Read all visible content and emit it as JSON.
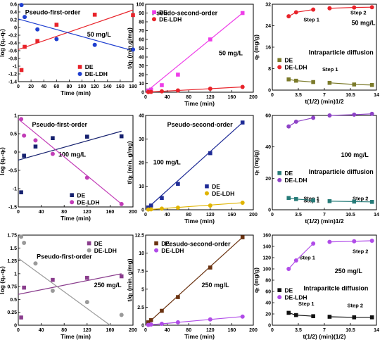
{
  "chart_data": [
    {
      "type": "scatter",
      "title": "Pseudo-first-order",
      "annotation": "50 mg/L",
      "xlabel": "Time (min)",
      "ylabel": "log (qₑ-qₜ)",
      "xlim": [
        0,
        180
      ],
      "ylim": [
        -1.4,
        0.6
      ],
      "xticks": [
        0,
        20,
        40,
        60,
        80,
        100,
        120,
        140,
        160,
        180
      ],
      "yticks": [
        -1.4,
        -1.2,
        -1.0,
        -0.8,
        -0.6,
        -0.4,
        -0.2,
        0.0,
        0.2,
        0.4,
        0.6
      ],
      "legend_position": "bottom-right",
      "series": [
        {
          "name": "DE",
          "color": "#e8232a",
          "marker": "square",
          "x": [
            5,
            10,
            30,
            60,
            120,
            180
          ],
          "y": [
            -1.1,
            -0.5,
            -0.35,
            0.07,
            0.33,
            0.32
          ],
          "fit": {
            "x": [
              0,
              180
            ],
            "y": [
              -0.57,
              0.45
            ]
          }
        },
        {
          "name": "DE-LDH",
          "color": "#1f3fd0",
          "marker": "circle",
          "x": [
            5,
            10,
            30,
            60,
            120,
            180
          ],
          "y": [
            0.58,
            0.27,
            -0.05,
            -0.3,
            -0.45,
            -0.57
          ],
          "fit": {
            "x": [
              0,
              180
            ],
            "y": [
              0.22,
              -0.6
            ]
          }
        }
      ]
    },
    {
      "type": "scatter",
      "title": "Pseudo-second-order",
      "annotation": "50 mg/L",
      "xlabel": "Time (min)",
      "ylabel": "t/qₜ (min.g/mg)",
      "xlim": [
        0,
        200
      ],
      "ylim": [
        0,
        100
      ],
      "xticks": [
        0,
        40,
        80,
        120,
        160,
        200
      ],
      "yticks": [
        0,
        10,
        20,
        30,
        40,
        50,
        60,
        70,
        80,
        90,
        100
      ],
      "legend_position": "top-left",
      "series": [
        {
          "name": "DE",
          "color": "#ee3de8",
          "marker": "square",
          "x": [
            5,
            10,
            30,
            60,
            120,
            180
          ],
          "y": [
            2,
            3,
            8,
            20,
            60,
            90
          ],
          "fit": {
            "x": [
              0,
              180
            ],
            "y": [
              0,
              90
            ]
          }
        },
        {
          "name": "DE-LDH",
          "color": "#e8232a",
          "marker": "circle",
          "x": [
            5,
            10,
            30,
            60,
            120,
            180
          ],
          "y": [
            0.2,
            0.4,
            1,
            2,
            4,
            6
          ],
          "fit": {
            "x": [
              0,
              180
            ],
            "y": [
              0,
              6
            ]
          }
        }
      ]
    },
    {
      "type": "scatter",
      "title": "Intraparticle diffusion",
      "annotation": "50 mg/L",
      "xlabel": "t(1/2) (min)1/2",
      "ylabel": "qₜ (mg/g)",
      "xlim": [
        0,
        14
      ],
      "ylim": [
        0,
        32
      ],
      "xticks": [
        0,
        3.5,
        7.0,
        10.5,
        14.0
      ],
      "yticks": [
        0,
        8,
        16,
        24,
        32
      ],
      "legend_position": "middle-left",
      "step_labels": [
        "Step 1",
        "Step 2",
        "Step 1"
      ],
      "series": [
        {
          "name": "DE",
          "color": "#7b7a2a",
          "marker": "square",
          "x": [
            2.2,
            3.2,
            5.5,
            7.7,
            11,
            13.4
          ],
          "y": [
            4,
            3.5,
            3,
            2.7,
            2.1,
            1.9
          ]
        },
        {
          "name": "DE-LDH",
          "color": "#e8232a",
          "marker": "circle",
          "x": [
            2.2,
            3.2,
            5.5,
            7.7,
            11,
            13.4
          ],
          "y": [
            27.5,
            29,
            30,
            30.5,
            30.8,
            30.9
          ]
        }
      ]
    },
    {
      "type": "scatter",
      "title": "Pseudo-first-order",
      "annotation": "100 mg/L",
      "xlabel": "Time (min)",
      "ylabel": "log (qₑ-qₜ)",
      "xlim": [
        0,
        200
      ],
      "ylim": [
        -1.5,
        1.0
      ],
      "xticks": [
        0,
        40,
        80,
        120,
        160,
        200
      ],
      "yticks": [
        -1.5,
        -1.0,
        -0.5,
        0.0,
        0.5,
        1.0
      ],
      "legend_position": "bottom-left",
      "series": [
        {
          "name": "DE",
          "color": "#15206e",
          "marker": "square",
          "x": [
            5,
            10,
            30,
            60,
            120,
            180
          ],
          "y": [
            -1.1,
            -0.1,
            0.15,
            0.38,
            0.42,
            0.43
          ],
          "fit": {
            "x": [
              0,
              180
            ],
            "y": [
              -0.22,
              0.57
            ]
          }
        },
        {
          "name": "DE-LDH",
          "color": "#c23db7",
          "marker": "circle",
          "x": [
            5,
            10,
            30,
            60,
            120,
            180
          ],
          "y": [
            0.9,
            0.45,
            0.32,
            -0.05,
            -0.7,
            -1.42
          ],
          "fit": {
            "x": [
              0,
              180
            ],
            "y": [
              0.9,
              -1.42
            ]
          }
        }
      ]
    },
    {
      "type": "scatter",
      "title": "Pseudo-second-order",
      "annotation": "100 mg/L",
      "xlabel": "Time (min)",
      "ylabel": "t/qₜ (min. g/mg)",
      "xlim": [
        0,
        200
      ],
      "ylim": [
        0,
        40
      ],
      "xticks": [
        0,
        40,
        80,
        120,
        160,
        200
      ],
      "yticks": [
        0,
        10,
        20,
        30,
        40
      ],
      "legend_position": "right",
      "series": [
        {
          "name": "DE",
          "color": "#1e2b96",
          "marker": "square",
          "x": [
            5,
            10,
            30,
            60,
            120,
            180
          ],
          "y": [
            1,
            1.8,
            5,
            11,
            24,
            37
          ],
          "fit": {
            "x": [
              0,
              180
            ],
            "y": [
              0,
              37
            ]
          }
        },
        {
          "name": "DE-LDH",
          "color": "#e0b400",
          "marker": "circle",
          "x": [
            5,
            10,
            30,
            60,
            120,
            180
          ],
          "y": [
            0.1,
            0.2,
            0.5,
            0.9,
            1.8,
            3
          ],
          "fit": {
            "x": [
              0,
              180
            ],
            "y": [
              0,
              3
            ]
          }
        }
      ]
    },
    {
      "type": "scatter",
      "title": "Intraparticle diffusion",
      "annotation": "100 mg/L",
      "xlabel": "t(1/2) (min)1/2",
      "ylabel": "qₜ (mg/g)",
      "xlim": [
        0,
        14
      ],
      "ylim": [
        0,
        60
      ],
      "xticks": [
        0,
        3.5,
        7.0,
        10.5,
        14.0
      ],
      "yticks": [
        0,
        20,
        40,
        60
      ],
      "legend_position": "middle-left",
      "step_labels": [
        "Step 1",
        "Step 1",
        "Step 2"
      ],
      "series": [
        {
          "name": "DE",
          "color": "#267b78",
          "marker": "square",
          "x": [
            2.2,
            3.2,
            5.5,
            7.7,
            11,
            13.4
          ],
          "y": [
            7.5,
            6.8,
            6,
            5.5,
            5.2,
            5
          ]
        },
        {
          "name": "DE-LDH",
          "color": "#8e43c7",
          "marker": "circle",
          "x": [
            2.2,
            3.2,
            5.5,
            7.7,
            11,
            13.4
          ],
          "y": [
            53,
            56,
            58.5,
            60,
            60.5,
            61
          ]
        }
      ]
    },
    {
      "type": "scatter",
      "title": "Pseudo-first-order",
      "annotation": "250 mg/L",
      "xlabel": "Time (min)",
      "ylabel": "log (qₑ-qₜ)",
      "xlim": [
        0,
        200
      ],
      "ylim": [
        0,
        1.75
      ],
      "xticks": [
        0,
        40,
        80,
        120,
        160,
        200
      ],
      "yticks": [
        0.0,
        0.25,
        0.5,
        0.75,
        1.0,
        1.25,
        1.5,
        1.75
      ],
      "legend_position": "top-right",
      "series": [
        {
          "name": "DE",
          "color": "#8a3d8d",
          "marker": "square",
          "x": [
            5,
            10,
            60,
            120,
            180
          ],
          "y": [
            0.15,
            0.73,
            0.88,
            0.92,
            0.95
          ],
          "fit": {
            "x": [
              0,
              180
            ],
            "y": [
              0.6,
              1.0
            ]
          }
        },
        {
          "name": "DE-LDH",
          "color": "#9a9a9a",
          "marker": "circle",
          "x": [
            5,
            10,
            30,
            60,
            120,
            180
          ],
          "y": [
            1.72,
            1.6,
            1.2,
            0.67,
            0.45,
            0.2
          ],
          "fit": {
            "x": [
              0,
              160
            ],
            "y": [
              1.3,
              0.0
            ]
          }
        }
      ]
    },
    {
      "type": "scatter",
      "title": "Pesudo-second-order",
      "annotation": "250 mg/L",
      "xlabel": "Time (min)",
      "ylabel": "t/qₜ (min. g/mg)",
      "xlim": [
        0,
        200
      ],
      "ylim": [
        0,
        12.5
      ],
      "xticks": [
        0,
        40,
        80,
        120,
        160,
        200
      ],
      "yticks": [
        0.0,
        2.5,
        5.0,
        7.5,
        10.0,
        12.5
      ],
      "legend_position": "top-left",
      "series": [
        {
          "name": "DE",
          "color": "#6a3210",
          "marker": "square",
          "x": [
            5,
            10,
            30,
            60,
            120,
            180
          ],
          "y": [
            0.4,
            0.7,
            2,
            3.9,
            8,
            12.2
          ],
          "fit": {
            "x": [
              0,
              180
            ],
            "y": [
              0,
              12.2
            ]
          }
        },
        {
          "name": "DE-LDH",
          "color": "#b04be8",
          "marker": "circle",
          "x": [
            5,
            10,
            30,
            60,
            120,
            180
          ],
          "y": [
            0.05,
            0.1,
            0.2,
            0.4,
            0.8,
            1.2
          ],
          "fit": {
            "x": [
              0,
              180
            ],
            "y": [
              0,
              1.2
            ]
          }
        }
      ]
    },
    {
      "type": "scatter",
      "title": "Intraparitcle diffusion",
      "annotation": "250 mg/L",
      "xlabel": "t(1/2) (min)(1/2)",
      "ylabel": "qₜ (mg/g)",
      "xlim": [
        0,
        14
      ],
      "ylim": [
        0,
        160
      ],
      "xticks": [
        0,
        3.5,
        7.0,
        10.5,
        14.0
      ],
      "yticks": [
        0,
        20,
        40,
        60,
        80,
        100,
        120,
        140,
        160
      ],
      "legend_position": "middle-left",
      "step_labels": [
        "Step 1",
        "Step 2",
        "Step 1",
        "Step 2"
      ],
      "series": [
        {
          "name": "DE",
          "color": "#111111",
          "marker": "square",
          "x": [
            2.2,
            3.2,
            5.5,
            7.7,
            11,
            13.4
          ],
          "y": [
            22,
            18,
            16,
            15,
            14,
            14
          ]
        },
        {
          "name": "DE-LDH",
          "color": "#b04be8",
          "marker": "circle",
          "x": [
            2.2,
            3.2,
            5.5,
            7.7,
            11,
            13.4
          ],
          "y": [
            100,
            115,
            145,
            148,
            149,
            150
          ]
        }
      ]
    }
  ]
}
